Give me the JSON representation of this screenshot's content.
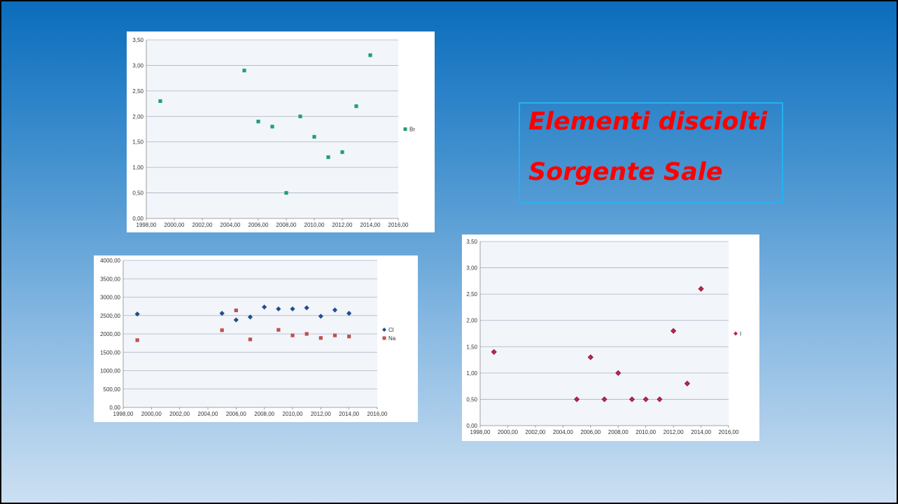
{
  "title": {
    "line1": "Elementi disciolti",
    "line2": "Sorgente Sale"
  },
  "chart_data": [
    {
      "id": "br",
      "type": "scatter",
      "xlim": [
        1998,
        2016
      ],
      "ylim": [
        0,
        3.5
      ],
      "xticks": [
        "1998,00",
        "2000,00",
        "2002,00",
        "2004,00",
        "2006,00",
        "2008,00",
        "2010,00",
        "2012,00",
        "2014,00",
        "2016,00"
      ],
      "yticks": [
        "0,00",
        "0,50",
        "1,00",
        "1,50",
        "2,00",
        "2,50",
        "3,00",
        "3,50"
      ],
      "grid": true,
      "legend": "right",
      "series": [
        {
          "name": "Br",
          "color": "#1f9e7c",
          "marker": "square",
          "x": [
            1999,
            2005,
            2006,
            2007,
            2008,
            2009,
            2010,
            2011,
            2012,
            2013,
            2014
          ],
          "y": [
            2.3,
            2.9,
            1.9,
            1.8,
            0.5,
            2.0,
            1.6,
            1.2,
            1.3,
            2.2,
            3.2
          ]
        }
      ]
    },
    {
      "id": "clna",
      "type": "scatter",
      "xlim": [
        1998,
        2016
      ],
      "ylim": [
        0,
        4000
      ],
      "xticks": [
        "1998,00",
        "2000,00",
        "2002,00",
        "2004,00",
        "2006,00",
        "2008,00",
        "2010,00",
        "2012,00",
        "2014,00",
        "2016,00"
      ],
      "yticks": [
        "0,00",
        "500,00",
        "1000,00",
        "1500,00",
        "2000,00",
        "2500,00",
        "3000,00",
        "3500,00",
        "4000,00"
      ],
      "grid": true,
      "legend": "right",
      "series": [
        {
          "name": "Cl",
          "color": "#1f4e8c",
          "marker": "diamond",
          "x": [
            1999,
            2005,
            2006,
            2007,
            2008,
            2009,
            2010,
            2011,
            2012,
            2013,
            2014
          ],
          "y": [
            2540,
            2560,
            2380,
            2460,
            2730,
            2680,
            2680,
            2710,
            2480,
            2650,
            2560
          ]
        },
        {
          "name": "Na",
          "color": "#c0504d",
          "marker": "square",
          "x": [
            1999,
            2005,
            2006,
            2007,
            2009,
            2010,
            2011,
            2012,
            2013,
            2014
          ],
          "y": [
            1830,
            2100,
            2640,
            1850,
            2110,
            1960,
            2000,
            1890,
            1960,
            1930
          ]
        }
      ]
    },
    {
      "id": "i",
      "type": "scatter",
      "xlim": [
        1998,
        2016
      ],
      "ylim": [
        0,
        3.5
      ],
      "xticks": [
        "1998,00",
        "2000,00",
        "2002,00",
        "2004,00",
        "2006,00",
        "2008,00",
        "2010,00",
        "2012,00",
        "2014,00",
        "2016,00"
      ],
      "yticks": [
        "0,00",
        "0,50",
        "1,00",
        "1,50",
        "2,00",
        "2,50",
        "3,00",
        "3,50"
      ],
      "grid": true,
      "legend": "right",
      "series": [
        {
          "name": "I",
          "color": "#c0234a",
          "marker": "diamond",
          "x": [
            1999,
            2005,
            2006,
            2007,
            2008,
            2009,
            2010,
            2011,
            2012,
            2013,
            2014
          ],
          "y": [
            1.4,
            0.5,
            1.3,
            0.5,
            1.0,
            0.5,
            0.5,
            0.5,
            1.8,
            0.8,
            2.6
          ]
        }
      ]
    }
  ]
}
